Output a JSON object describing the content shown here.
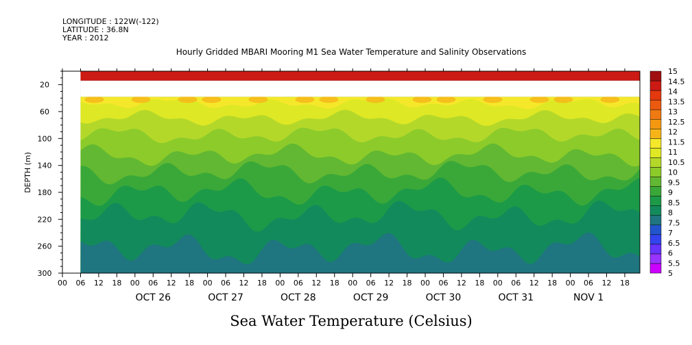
{
  "header": {
    "longitude": "LONGITUDE : 122W(-122)",
    "latitude": "LATITUDE : 36.8N",
    "year": "YEAR : 2012"
  },
  "chart_data": {
    "type": "heatmap",
    "title": "Hourly Gridded MBARI Mooring M1 Sea Water Temperature and Salinity Observations",
    "xlabel": "Sea Water Temperature (Celsius)",
    "ylabel": "DEPTH (m)",
    "x_range": [
      "2012-10-25T00:00",
      "2012-11-01T23:00"
    ],
    "data_start": "2012-10-25T06:00",
    "y_range": [
      0,
      300
    ],
    "y_inverted": true,
    "y_ticks": [
      20,
      60,
      100,
      140,
      180,
      220,
      260,
      300
    ],
    "x_hour_ticks": [
      "00",
      "06",
      "12",
      "18",
      "00",
      "06",
      "12",
      "18",
      "00",
      "06",
      "12",
      "18",
      "00",
      "06",
      "12",
      "18",
      "00",
      "06",
      "12",
      "18",
      "00",
      "06",
      "12",
      "18",
      "00",
      "06",
      "12",
      "18",
      "00",
      "06",
      "12",
      "18"
    ],
    "x_day_labels": [
      "OCT 26",
      "OCT 27",
      "OCT 28",
      "OCT 29",
      "OCT 30",
      "OCT 31",
      "NOV  1"
    ],
    "missing_depth_band": [
      14,
      38
    ],
    "colorbar": {
      "levels": [
        5,
        5.5,
        6,
        6.5,
        7,
        7.5,
        8,
        8.5,
        9,
        9.5,
        10,
        10.5,
        11,
        11.5,
        12,
        12.5,
        13,
        13.5,
        14,
        14.5,
        15
      ],
      "colors": [
        "#cc00ff",
        "#9933ff",
        "#6633ff",
        "#3344ee",
        "#2255cc",
        "#1f7580",
        "#138a5c",
        "#1c9a48",
        "#3aa838",
        "#62b832",
        "#8ccb2a",
        "#b4d82a",
        "#dfe824",
        "#f5e82a",
        "#f6b418",
        "#f49812",
        "#ef7a12",
        "#ec5a10",
        "#e4380e",
        "#cc1a14",
        "#a01010"
      ]
    },
    "isotherm_depths": [
      {
        "temp": 11.5,
        "depth": 48
      },
      {
        "temp": 11,
        "depth": 70
      },
      {
        "temp": 10.5,
        "depth": 95
      },
      {
        "temp": 10,
        "depth": 125
      },
      {
        "temp": 9.5,
        "depth": 150
      },
      {
        "temp": 9,
        "depth": 180
      },
      {
        "temp": 8.5,
        "depth": 215
      },
      {
        "temp": 8,
        "depth": 265
      }
    ],
    "grid": false
  }
}
